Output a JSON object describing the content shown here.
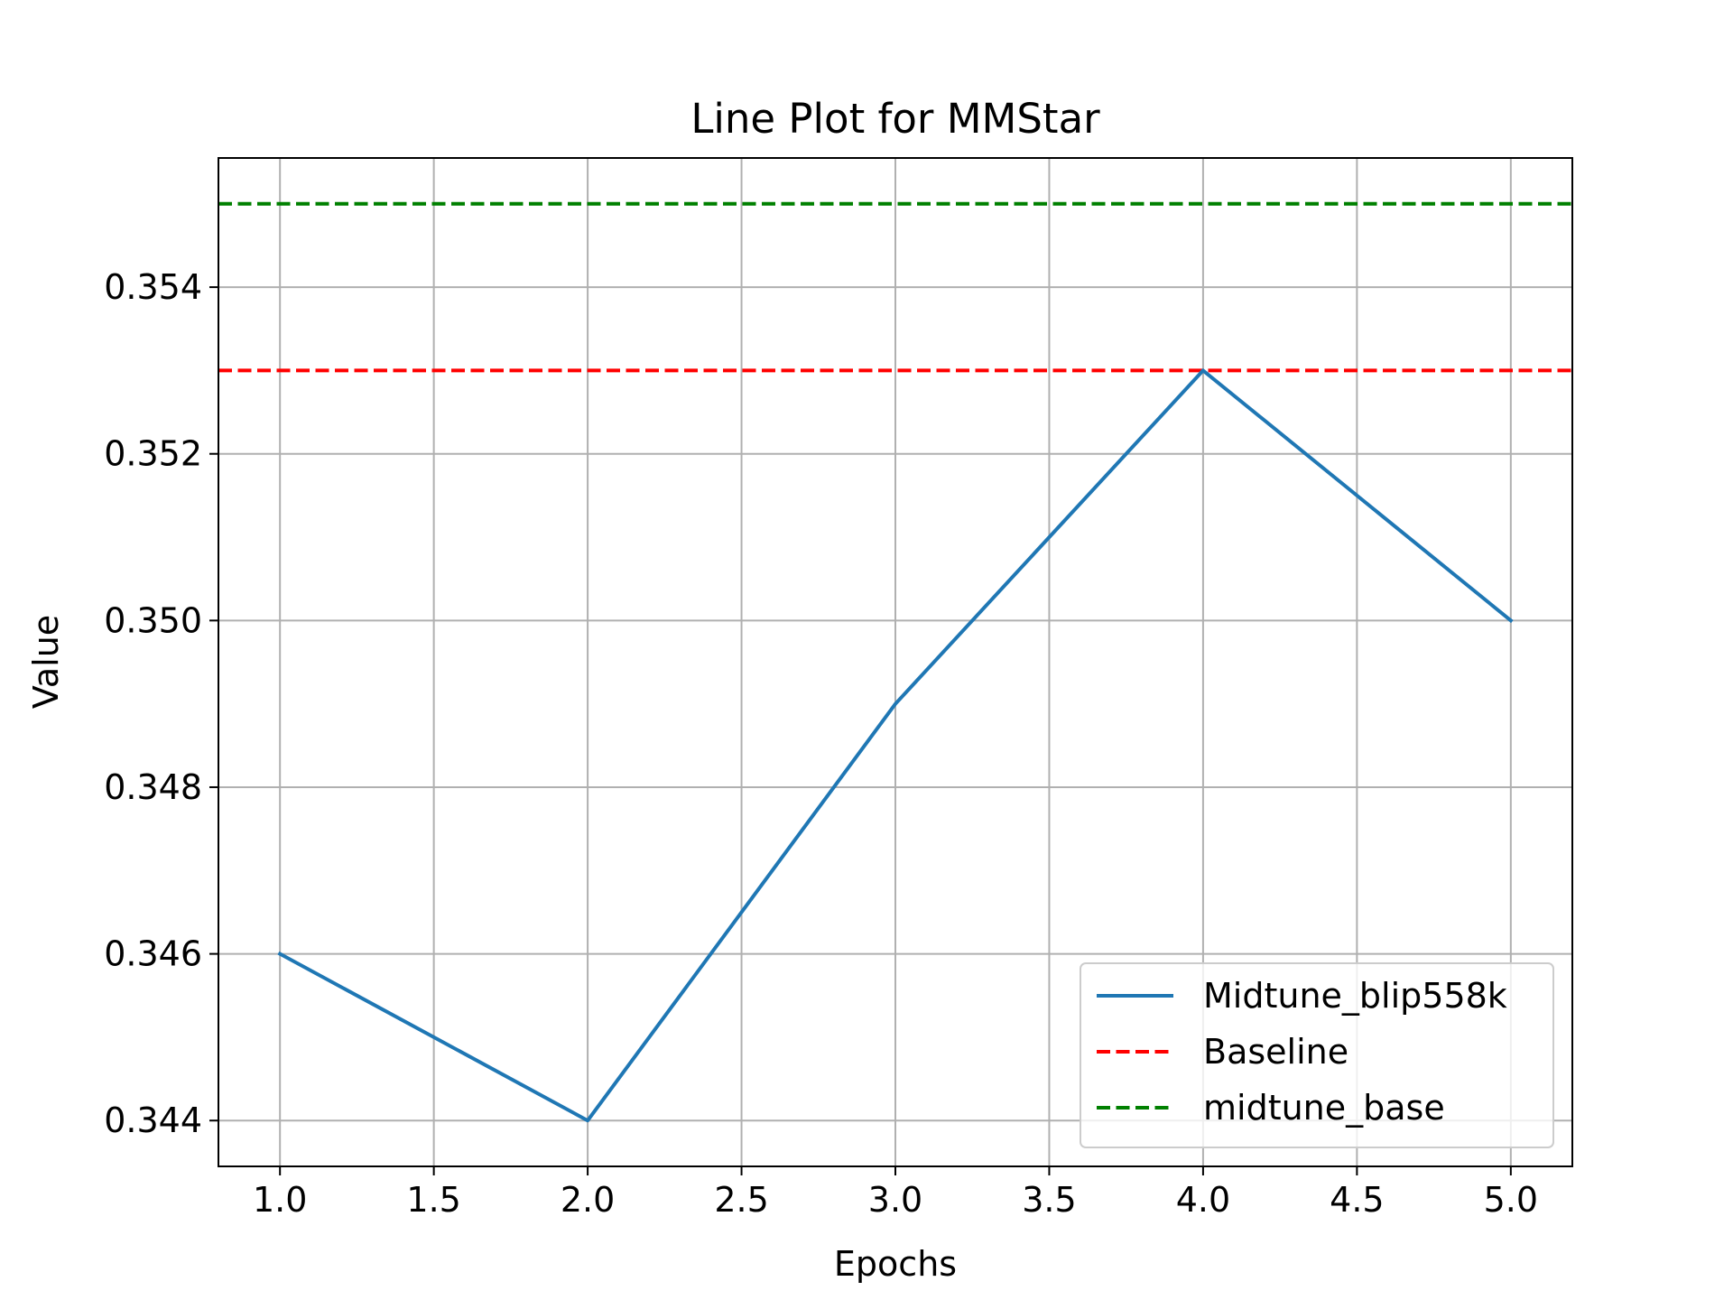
{
  "chart_data": {
    "type": "line",
    "title": "Line Plot for MMStar",
    "xlabel": "Epochs",
    "ylabel": "Value",
    "xlim": [
      0.8,
      5.2
    ],
    "ylim": [
      0.34345,
      0.35555
    ],
    "xticks": [
      1.0,
      1.5,
      2.0,
      2.5,
      3.0,
      3.5,
      4.0,
      4.5,
      5.0
    ],
    "xtick_labels": [
      "1.0",
      "1.5",
      "2.0",
      "2.5",
      "3.0",
      "3.5",
      "4.0",
      "4.5",
      "5.0"
    ],
    "yticks": [
      0.344,
      0.346,
      0.348,
      0.35,
      0.352,
      0.354
    ],
    "ytick_labels": [
      "0.344",
      "0.346",
      "0.348",
      "0.350",
      "0.352",
      "0.354"
    ],
    "grid": true,
    "legend_position": "bottom-right",
    "series": [
      {
        "name": "Midtune_blip558k",
        "style": "solid",
        "color": "#1f77b4",
        "x": [
          1,
          2,
          3,
          4,
          5
        ],
        "y": [
          0.346,
          0.344,
          0.349,
          0.353,
          0.35
        ]
      }
    ],
    "reference_lines": [
      {
        "name": "Baseline",
        "style": "dashed",
        "color": "#ff0000",
        "y": 0.353
      },
      {
        "name": "midtune_base",
        "style": "dashed",
        "color": "#008000",
        "y": 0.355
      }
    ]
  }
}
